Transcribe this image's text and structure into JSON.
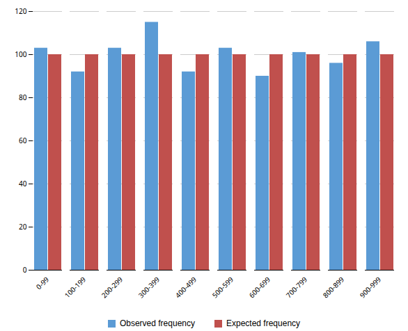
{
  "chart_data": {
    "type": "bar",
    "categories": [
      "0-99",
      "100-199",
      "200-299",
      "300-399",
      "400-499",
      "500-599",
      "600-699",
      "700-799",
      "800-899",
      "900-999"
    ],
    "series": [
      {
        "name": "Observed frequency",
        "color": "#5b9bd5",
        "values": [
          103,
          92,
          103,
          115,
          92,
          103,
          90,
          101,
          96,
          106
        ]
      },
      {
        "name": "Expected frequency",
        "color": "#c0504d",
        "values": [
          100,
          100,
          100,
          100,
          100,
          100,
          100,
          100,
          100,
          100
        ]
      }
    ],
    "ylim": [
      0,
      120
    ],
    "yticks": [
      0,
      20,
      40,
      60,
      80,
      100,
      120
    ],
    "grid": true,
    "legend": "bottom"
  }
}
